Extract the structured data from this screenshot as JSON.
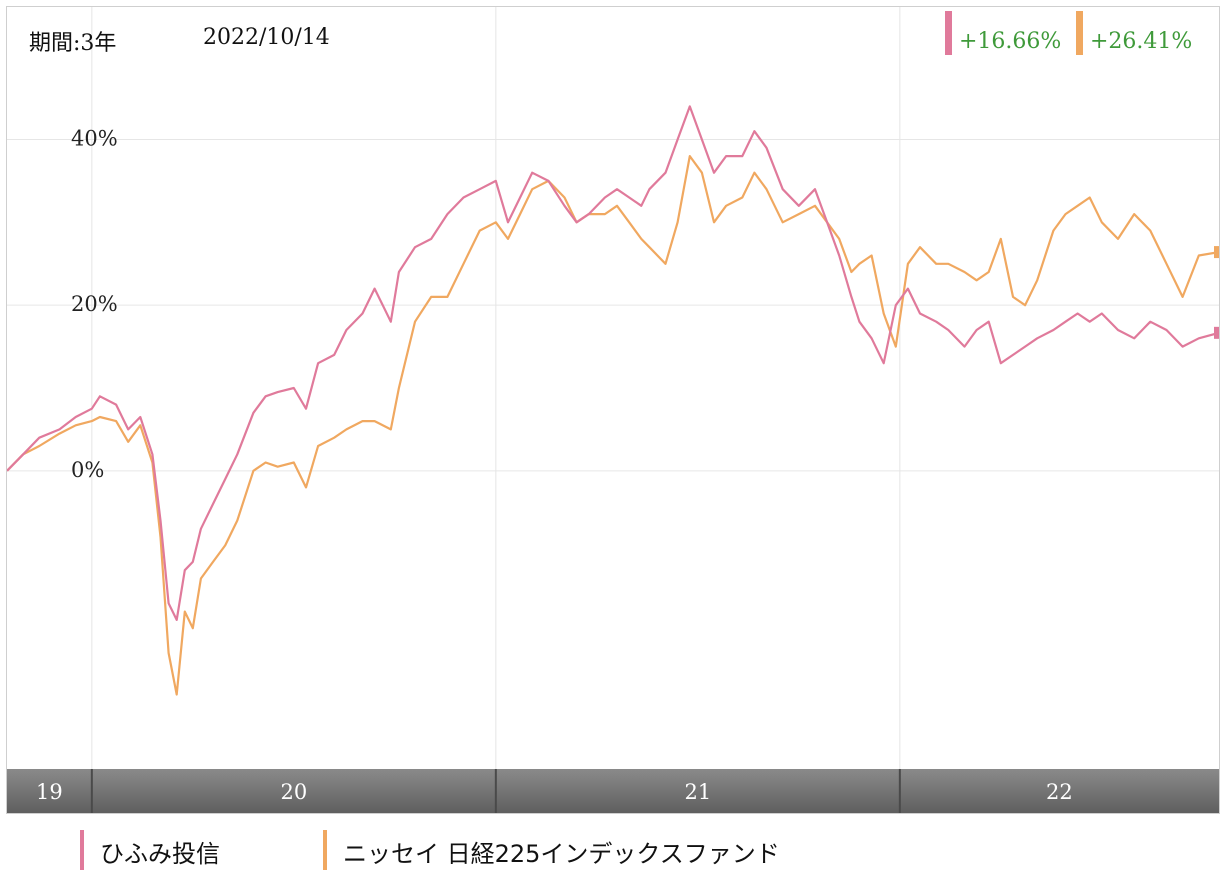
{
  "header": {
    "period_label": "期間:3年",
    "date": "2022/10/14"
  },
  "performance": [
    {
      "value": "+16.66%",
      "color": "#e07a9b"
    },
    {
      "value": "+26.41%",
      "color": "#f0a860"
    }
  ],
  "legend": [
    {
      "label": "ひふみ投信",
      "color": "#e07a9b"
    },
    {
      "label": "ニッセイ 日経225インデックスファンド",
      "color": "#f0a860"
    }
  ],
  "chart_data": {
    "type": "line",
    "title": "",
    "xlabel": "",
    "ylabel": "",
    "x_tick_labels": [
      "19",
      "20",
      "21",
      "22"
    ],
    "y_tick_labels": [
      "40%",
      "20%",
      "0%"
    ],
    "y_ticks": [
      40,
      20,
      0
    ],
    "xlim": [
      2019.79,
      2022.79
    ],
    "ylim": [
      -36,
      56
    ],
    "grid": true,
    "legend_position": "bottom",
    "series": [
      {
        "name": "ひふみ投信",
        "color": "#e07a9b",
        "points": [
          [
            2019.79,
            0
          ],
          [
            2019.83,
            2
          ],
          [
            2019.87,
            4
          ],
          [
            2019.92,
            5
          ],
          [
            2019.96,
            6.5
          ],
          [
            2020.0,
            7.5
          ],
          [
            2020.02,
            9
          ],
          [
            2020.06,
            8
          ],
          [
            2020.09,
            5
          ],
          [
            2020.12,
            6.5
          ],
          [
            2020.15,
            2
          ],
          [
            2020.17,
            -6
          ],
          [
            2020.19,
            -16
          ],
          [
            2020.21,
            -18
          ],
          [
            2020.23,
            -12
          ],
          [
            2020.25,
            -11
          ],
          [
            2020.27,
            -7
          ],
          [
            2020.3,
            -4
          ],
          [
            2020.33,
            -1
          ],
          [
            2020.36,
            2
          ],
          [
            2020.4,
            7
          ],
          [
            2020.43,
            9
          ],
          [
            2020.46,
            9.5
          ],
          [
            2020.5,
            10
          ],
          [
            2020.53,
            7.5
          ],
          [
            2020.56,
            13
          ],
          [
            2020.6,
            14
          ],
          [
            2020.63,
            17
          ],
          [
            2020.67,
            19
          ],
          [
            2020.7,
            22
          ],
          [
            2020.74,
            18
          ],
          [
            2020.76,
            24
          ],
          [
            2020.8,
            27
          ],
          [
            2020.84,
            28
          ],
          [
            2020.88,
            31
          ],
          [
            2020.92,
            33
          ],
          [
            2020.96,
            34
          ],
          [
            2021.0,
            35
          ],
          [
            2021.03,
            30
          ],
          [
            2021.06,
            33
          ],
          [
            2021.09,
            36
          ],
          [
            2021.13,
            35
          ],
          [
            2021.17,
            32
          ],
          [
            2021.2,
            30
          ],
          [
            2021.23,
            31
          ],
          [
            2021.27,
            33
          ],
          [
            2021.3,
            34
          ],
          [
            2021.33,
            33
          ],
          [
            2021.36,
            32
          ],
          [
            2021.38,
            34
          ],
          [
            2021.42,
            36
          ],
          [
            2021.45,
            40
          ],
          [
            2021.48,
            44
          ],
          [
            2021.51,
            40
          ],
          [
            2021.54,
            36
          ],
          [
            2021.57,
            38
          ],
          [
            2021.61,
            38
          ],
          [
            2021.64,
            41
          ],
          [
            2021.67,
            39
          ],
          [
            2021.71,
            34
          ],
          [
            2021.75,
            32
          ],
          [
            2021.79,
            34
          ],
          [
            2021.82,
            30
          ],
          [
            2021.85,
            26
          ],
          [
            2021.88,
            21
          ],
          [
            2021.9,
            18
          ],
          [
            2021.93,
            16
          ],
          [
            2021.96,
            13
          ],
          [
            2021.99,
            20
          ],
          [
            2022.02,
            22
          ],
          [
            2022.05,
            19
          ],
          [
            2022.09,
            18
          ],
          [
            2022.12,
            17
          ],
          [
            2022.16,
            15
          ],
          [
            2022.19,
            17
          ],
          [
            2022.22,
            18
          ],
          [
            2022.25,
            13
          ],
          [
            2022.28,
            14
          ],
          [
            2022.31,
            15
          ],
          [
            2022.34,
            16
          ],
          [
            2022.38,
            17
          ],
          [
            2022.41,
            18
          ],
          [
            2022.44,
            19
          ],
          [
            2022.47,
            18
          ],
          [
            2022.5,
            19
          ],
          [
            2022.54,
            17
          ],
          [
            2022.58,
            16
          ],
          [
            2022.62,
            18
          ],
          [
            2022.66,
            17
          ],
          [
            2022.7,
            15
          ],
          [
            2022.74,
            16
          ],
          [
            2022.79,
            16.66
          ]
        ]
      },
      {
        "name": "ニッセイ 日経225インデックスファンド",
        "color": "#f0a860",
        "points": [
          [
            2019.79,
            0
          ],
          [
            2019.83,
            2
          ],
          [
            2019.87,
            3
          ],
          [
            2019.92,
            4.5
          ],
          [
            2019.96,
            5.5
          ],
          [
            2020.0,
            6
          ],
          [
            2020.02,
            6.5
          ],
          [
            2020.06,
            6
          ],
          [
            2020.09,
            3.5
          ],
          [
            2020.12,
            5.5
          ],
          [
            2020.15,
            1
          ],
          [
            2020.17,
            -8
          ],
          [
            2020.19,
            -22
          ],
          [
            2020.21,
            -27
          ],
          [
            2020.23,
            -17
          ],
          [
            2020.25,
            -19
          ],
          [
            2020.27,
            -13
          ],
          [
            2020.3,
            -11
          ],
          [
            2020.33,
            -9
          ],
          [
            2020.36,
            -6
          ],
          [
            2020.4,
            0
          ],
          [
            2020.43,
            1
          ],
          [
            2020.46,
            0.5
          ],
          [
            2020.5,
            1
          ],
          [
            2020.53,
            -2
          ],
          [
            2020.56,
            3
          ],
          [
            2020.6,
            4
          ],
          [
            2020.63,
            5
          ],
          [
            2020.67,
            6
          ],
          [
            2020.7,
            6
          ],
          [
            2020.74,
            5
          ],
          [
            2020.76,
            10
          ],
          [
            2020.8,
            18
          ],
          [
            2020.84,
            21
          ],
          [
            2020.88,
            21
          ],
          [
            2020.92,
            25
          ],
          [
            2020.96,
            29
          ],
          [
            2021.0,
            30
          ],
          [
            2021.03,
            28
          ],
          [
            2021.06,
            31
          ],
          [
            2021.09,
            34
          ],
          [
            2021.13,
            35
          ],
          [
            2021.17,
            33
          ],
          [
            2021.2,
            30
          ],
          [
            2021.23,
            31
          ],
          [
            2021.27,
            31
          ],
          [
            2021.3,
            32
          ],
          [
            2021.33,
            30
          ],
          [
            2021.36,
            28
          ],
          [
            2021.38,
            27
          ],
          [
            2021.42,
            25
          ],
          [
            2021.45,
            30
          ],
          [
            2021.48,
            38
          ],
          [
            2021.51,
            36
          ],
          [
            2021.54,
            30
          ],
          [
            2021.57,
            32
          ],
          [
            2021.61,
            33
          ],
          [
            2021.64,
            36
          ],
          [
            2021.67,
            34
          ],
          [
            2021.71,
            30
          ],
          [
            2021.75,
            31
          ],
          [
            2021.79,
            32
          ],
          [
            2021.82,
            30
          ],
          [
            2021.85,
            28
          ],
          [
            2021.88,
            24
          ],
          [
            2021.9,
            25
          ],
          [
            2021.93,
            26
          ],
          [
            2021.96,
            19
          ],
          [
            2021.99,
            15
          ],
          [
            2022.02,
            25
          ],
          [
            2022.05,
            27
          ],
          [
            2022.09,
            25
          ],
          [
            2022.12,
            25
          ],
          [
            2022.16,
            24
          ],
          [
            2022.19,
            23
          ],
          [
            2022.22,
            24
          ],
          [
            2022.25,
            28
          ],
          [
            2022.28,
            21
          ],
          [
            2022.31,
            20
          ],
          [
            2022.34,
            23
          ],
          [
            2022.38,
            29
          ],
          [
            2022.41,
            31
          ],
          [
            2022.44,
            32
          ],
          [
            2022.47,
            33
          ],
          [
            2022.5,
            30
          ],
          [
            2022.54,
            28
          ],
          [
            2022.58,
            31
          ],
          [
            2022.62,
            29
          ],
          [
            2022.66,
            25
          ],
          [
            2022.7,
            21
          ],
          [
            2022.74,
            26
          ],
          [
            2022.79,
            26.41
          ]
        ]
      }
    ]
  }
}
